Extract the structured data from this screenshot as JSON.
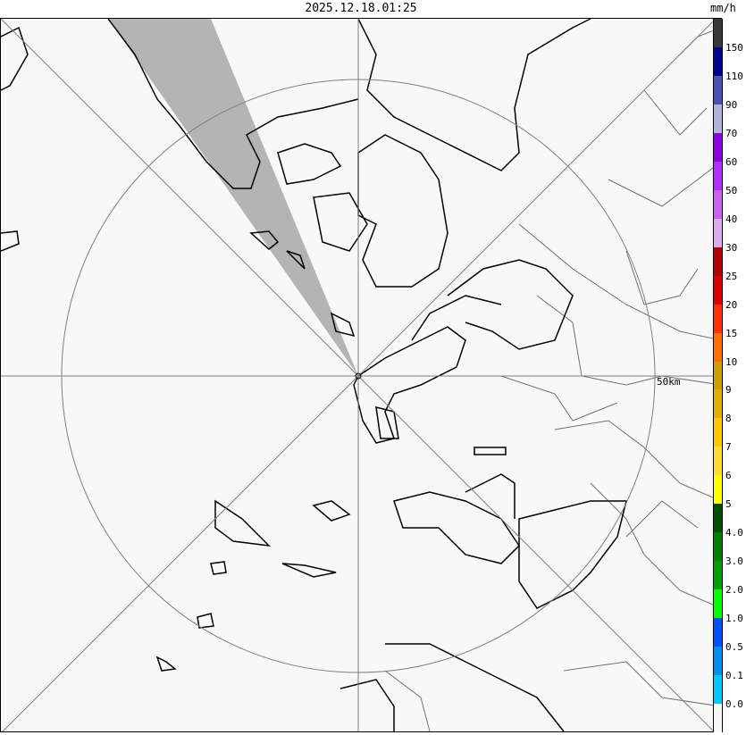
{
  "header": {
    "timestamp": "2025.12.18.01:25",
    "unit": "mm/h"
  },
  "map": {
    "range_ring_label": "50km",
    "blocked_sector_color": "#b4b4b4",
    "coastline_color": "#000000",
    "boundary_color": "#707070"
  },
  "legend": {
    "segments": [
      {
        "color": "#383838",
        "label": ""
      },
      {
        "color": "#000090",
        "label": "150"
      },
      {
        "color": "#4850b0",
        "label": "110"
      },
      {
        "color": "#b0b4d8",
        "label": "90"
      },
      {
        "color": "#9000e0",
        "label": "70"
      },
      {
        "color": "#b030ff",
        "label": "60"
      },
      {
        "color": "#c860f0",
        "label": "50"
      },
      {
        "color": "#dcacf0",
        "label": "40"
      },
      {
        "color": "#b00000",
        "label": "30"
      },
      {
        "color": "#d80000",
        "label": "25"
      },
      {
        "color": "#ff3000",
        "label": "20"
      },
      {
        "color": "#ff7000",
        "label": "15"
      },
      {
        "color": "#c8a000",
        "label": "10"
      },
      {
        "color": "#e0b000",
        "label": "9"
      },
      {
        "color": "#ffc800",
        "label": "8"
      },
      {
        "color": "#ffdc30",
        "label": "7"
      },
      {
        "color": "#ffff00",
        "label": "6"
      },
      {
        "color": "#005000",
        "label": "5"
      },
      {
        "color": "#008000",
        "label": "4.0"
      },
      {
        "color": "#00a000",
        "label": "3.0"
      },
      {
        "color": "#00ff00",
        "label": "2.0"
      },
      {
        "color": "#0050ff",
        "label": "1.0"
      },
      {
        "color": "#0090f0",
        "label": "0.5"
      },
      {
        "color": "#00c8ff",
        "label": "0.1"
      },
      {
        "color": "#f8f8f8",
        "label": "0.0"
      }
    ]
  }
}
